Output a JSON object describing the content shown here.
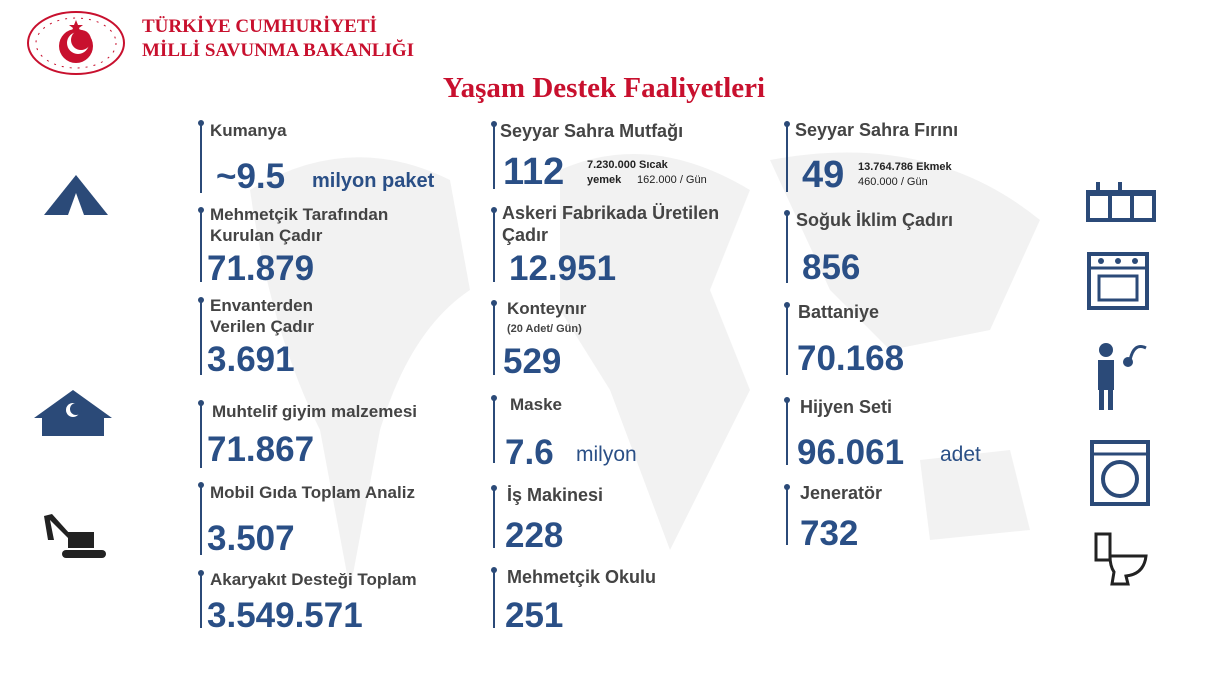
{
  "header": {
    "line1": "TÜRKİYE CUMHURİYETİ",
    "line2": "MİLLİ SAVUNMA BAKANLIĞI",
    "logo_text": "T.C. Milli Savunma Bakanlığı"
  },
  "title": "Yaşam Destek Faaliyetleri",
  "colors": {
    "brand_red": "#c8102e",
    "value_blue": "#2a4f86",
    "icon_navy": "#2b4a78"
  },
  "col1": [
    {
      "label": "Kumanya",
      "value": "~9.5",
      "unit": "milyon paket"
    },
    {
      "label1": "Mehmetçik Tarafından",
      "label2": "Kurulan Çadır",
      "value": "71.879"
    },
    {
      "label1": "Envanterden",
      "label2": "Verilen Çadır",
      "value": "3.691"
    },
    {
      "label": "Muhtelif giyim malzemesi",
      "value": "71.867"
    },
    {
      "label": "Mobil Gıda Toplam Analiz",
      "value": "3.507"
    },
    {
      "label": "Akaryakıt Desteği Toplam",
      "value": "3.549.571"
    }
  ],
  "col2": [
    {
      "label": "Seyyar Sahra Mutfağı",
      "value": "112",
      "note1": "7.230.000 Sıcak",
      "note2a": "yemek",
      "note2b": "162.000 / Gün"
    },
    {
      "label1": "Askeri Fabrikada Üretilen",
      "label2": "Çadır",
      "value": "12.951"
    },
    {
      "label": "Konteynır",
      "sub": "(20 Adet/ Gün)",
      "value": "529"
    },
    {
      "label": "Maske",
      "value": "7.6",
      "unit": "milyon"
    },
    {
      "label": "İş Makinesi",
      "value": "228"
    },
    {
      "label": "Mehmetçik Okulu",
      "value": "251"
    }
  ],
  "col3": [
    {
      "label": "Seyyar Sahra Fırını",
      "value": "49",
      "note1": "13.764.786 Ekmek",
      "note2": "460.000 / Gün"
    },
    {
      "label": "Soğuk İklim Çadırı",
      "value": "856"
    },
    {
      "label": "Battaniye",
      "value": "70.168"
    },
    {
      "label": "Hijyen Seti",
      "value": "96.061",
      "unit": "adet"
    },
    {
      "label": "Jeneratör",
      "value": "732"
    }
  ]
}
